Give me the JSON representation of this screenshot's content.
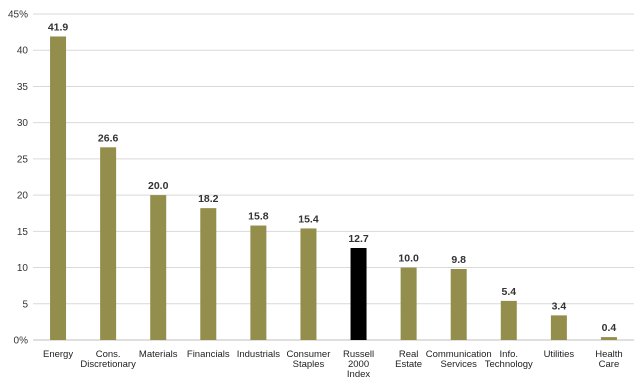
{
  "chart_data": {
    "type": "bar",
    "title": "",
    "xlabel": "",
    "ylabel": "",
    "ylim": [
      0,
      45
    ],
    "y_ticks": [
      "0%",
      "5",
      "10",
      "15",
      "20",
      "25",
      "30",
      "35",
      "40",
      "45%"
    ],
    "grid": true,
    "legend": "none",
    "categories": [
      [
        "Energy"
      ],
      [
        "Cons.",
        "Discretionary"
      ],
      [
        "Materials"
      ],
      [
        "Financials"
      ],
      [
        "Industrials"
      ],
      [
        "Consumer",
        "Staples"
      ],
      [
        "Russell",
        "2000",
        "Index"
      ],
      [
        "Real",
        "Estate"
      ],
      [
        "Communication",
        "Services"
      ],
      [
        "Info.",
        "Technology"
      ],
      [
        "Utilities"
      ],
      [
        "Health",
        "Care"
      ]
    ],
    "values": [
      41.9,
      26.6,
      20.0,
      18.2,
      15.8,
      15.4,
      12.7,
      10.0,
      9.8,
      5.4,
      3.4,
      0.4
    ],
    "data_labels": [
      "41.9",
      "26.6",
      "20.0",
      "18.2",
      "15.8",
      "15.4",
      "12.7",
      "10.0",
      "9.8",
      "5.4",
      "3.4",
      "0.4"
    ],
    "bar_colors": [
      "#948e4c",
      "#948e4c",
      "#948e4c",
      "#948e4c",
      "#948e4c",
      "#948e4c",
      "#000000",
      "#948e4c",
      "#948e4c",
      "#948e4c",
      "#948e4c",
      "#948e4c"
    ]
  }
}
